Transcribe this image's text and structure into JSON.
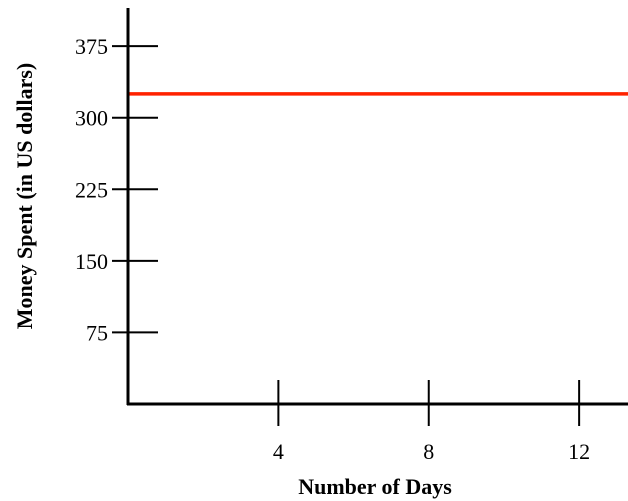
{
  "chart_data": {
    "type": "line",
    "title": "",
    "xlabel": "Number of Days",
    "ylabel": "Money Spent (in US dollars)",
    "xlim": [
      0,
      13.3
    ],
    "ylim": [
      0,
      415
    ],
    "x_ticks": [
      4,
      8,
      12
    ],
    "y_ticks": [
      75,
      150,
      225,
      300,
      375
    ],
    "grid": false,
    "legend": "none",
    "series": [
      {
        "color": "#ff2200",
        "x": [
          0,
          13.3
        ],
        "y": [
          325,
          325
        ]
      }
    ]
  }
}
